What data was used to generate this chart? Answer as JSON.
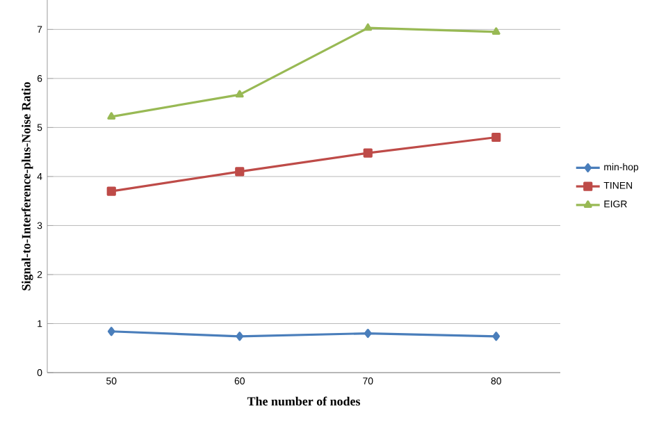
{
  "chart_data": {
    "type": "line",
    "xlabel": "The number  of nodes",
    "ylabel": "Signal-to-Interference-plus-Noise Ratio",
    "categories": [
      "50",
      "60",
      "70",
      "80"
    ],
    "series": [
      {
        "name": "min-hop",
        "color": "#4a7ebb",
        "marker": "diamond",
        "values": [
          0.84,
          0.74,
          0.8,
          0.74
        ]
      },
      {
        "name": "TINEN",
        "color": "#be4b48",
        "marker": "square",
        "values": [
          3.7,
          4.1,
          4.48,
          4.8
        ]
      },
      {
        "name": "EIGR",
        "color": "#98b954",
        "marker": "triangle",
        "values": [
          5.22,
          5.67,
          7.03,
          6.95
        ]
      }
    ],
    "ylim": [
      0,
      7.6
    ],
    "yticks": [
      0,
      1,
      2,
      3,
      4,
      5,
      6,
      7
    ],
    "grid": "y",
    "legend": "right"
  }
}
